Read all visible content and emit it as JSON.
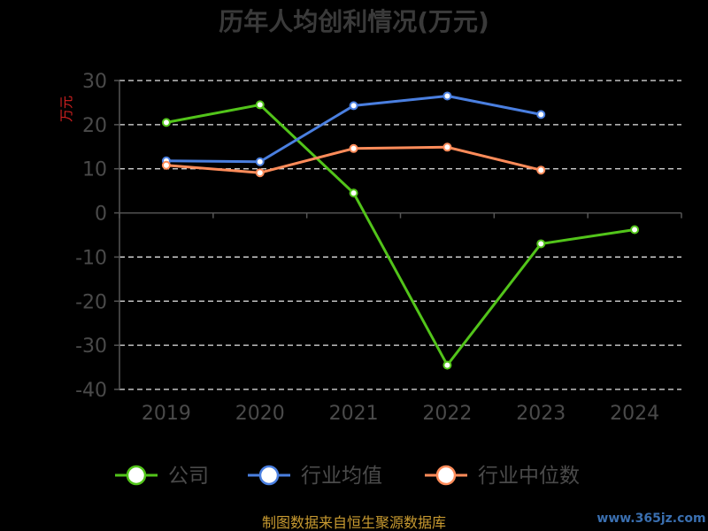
{
  "chart_data": {
    "type": "line",
    "title": "历年人均创利情况(万元)",
    "ylabel": "万元",
    "xlabel": "",
    "categories": [
      "2019",
      "2020",
      "2021",
      "2022",
      "2023",
      "2024"
    ],
    "yticks": [
      "30",
      "20",
      "10",
      "0",
      "-10",
      "-20",
      "-30",
      "-40"
    ],
    "ylim": [
      -40,
      30
    ],
    "grid": true,
    "legend_position": "bottom",
    "series": [
      {
        "name": "公司",
        "color": "#52c41a",
        "values": [
          20.5,
          24.5,
          4.5,
          -34.5,
          -7.0,
          -3.8
        ]
      },
      {
        "name": "行业均值",
        "color": "#4a7fe0",
        "values": [
          11.8,
          11.6,
          24.3,
          26.5,
          22.3,
          null
        ]
      },
      {
        "name": "行业中位数",
        "color": "#ff8c5a",
        "values": [
          10.8,
          9.1,
          14.6,
          14.9,
          9.7,
          null
        ]
      }
    ]
  },
  "footer": {
    "source": "制图数据来自恒生聚源数据库",
    "watermark": "www.365jz.com"
  }
}
